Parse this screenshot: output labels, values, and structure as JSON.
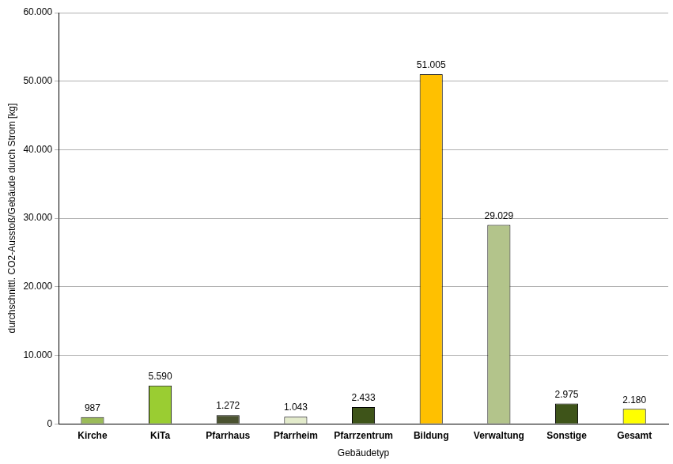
{
  "chart_data": {
    "type": "bar",
    "x_label": "Gebäudetyp",
    "y_label": "durchschnittl. CO2-Ausstoß/Gebäude durch Strom [kg]",
    "categories": [
      "Kirche",
      "KiTa",
      "Pfarrhaus",
      "Pfarrheim",
      "Pfarrzentrum",
      "Bildung",
      "Verwaltung",
      "Sonstige",
      "Gesamt"
    ],
    "values": [
      987,
      5590,
      1272,
      1043,
      2433,
      51005,
      29029,
      2975,
      2180
    ],
    "value_labels": [
      "987",
      "5.590",
      "1.272",
      "1.043",
      "2.433",
      "51.005",
      "29.029",
      "2.975",
      "2.180"
    ],
    "colors": [
      "#9bbb59",
      "#9acd32",
      "#4a5230",
      "#e3ebcb",
      "#3e5419",
      "#ffc000",
      "#b3c48b",
      "#3e5419",
      "#ffff00"
    ],
    "ylim": [
      0,
      60000
    ],
    "yticks": [
      0,
      {
        "value": 10000,
        "label": "10.000"
      },
      {
        "value": 20000,
        "label": "20.000"
      },
      {
        "value": 30000,
        "label": "30.000"
      },
      {
        "value": 40000,
        "label": "40.000"
      },
      {
        "value": 50000,
        "label": "50.000"
      },
      {
        "value": 60000,
        "label": "60.000"
      }
    ],
    "grid": true,
    "data_labels": true
  }
}
